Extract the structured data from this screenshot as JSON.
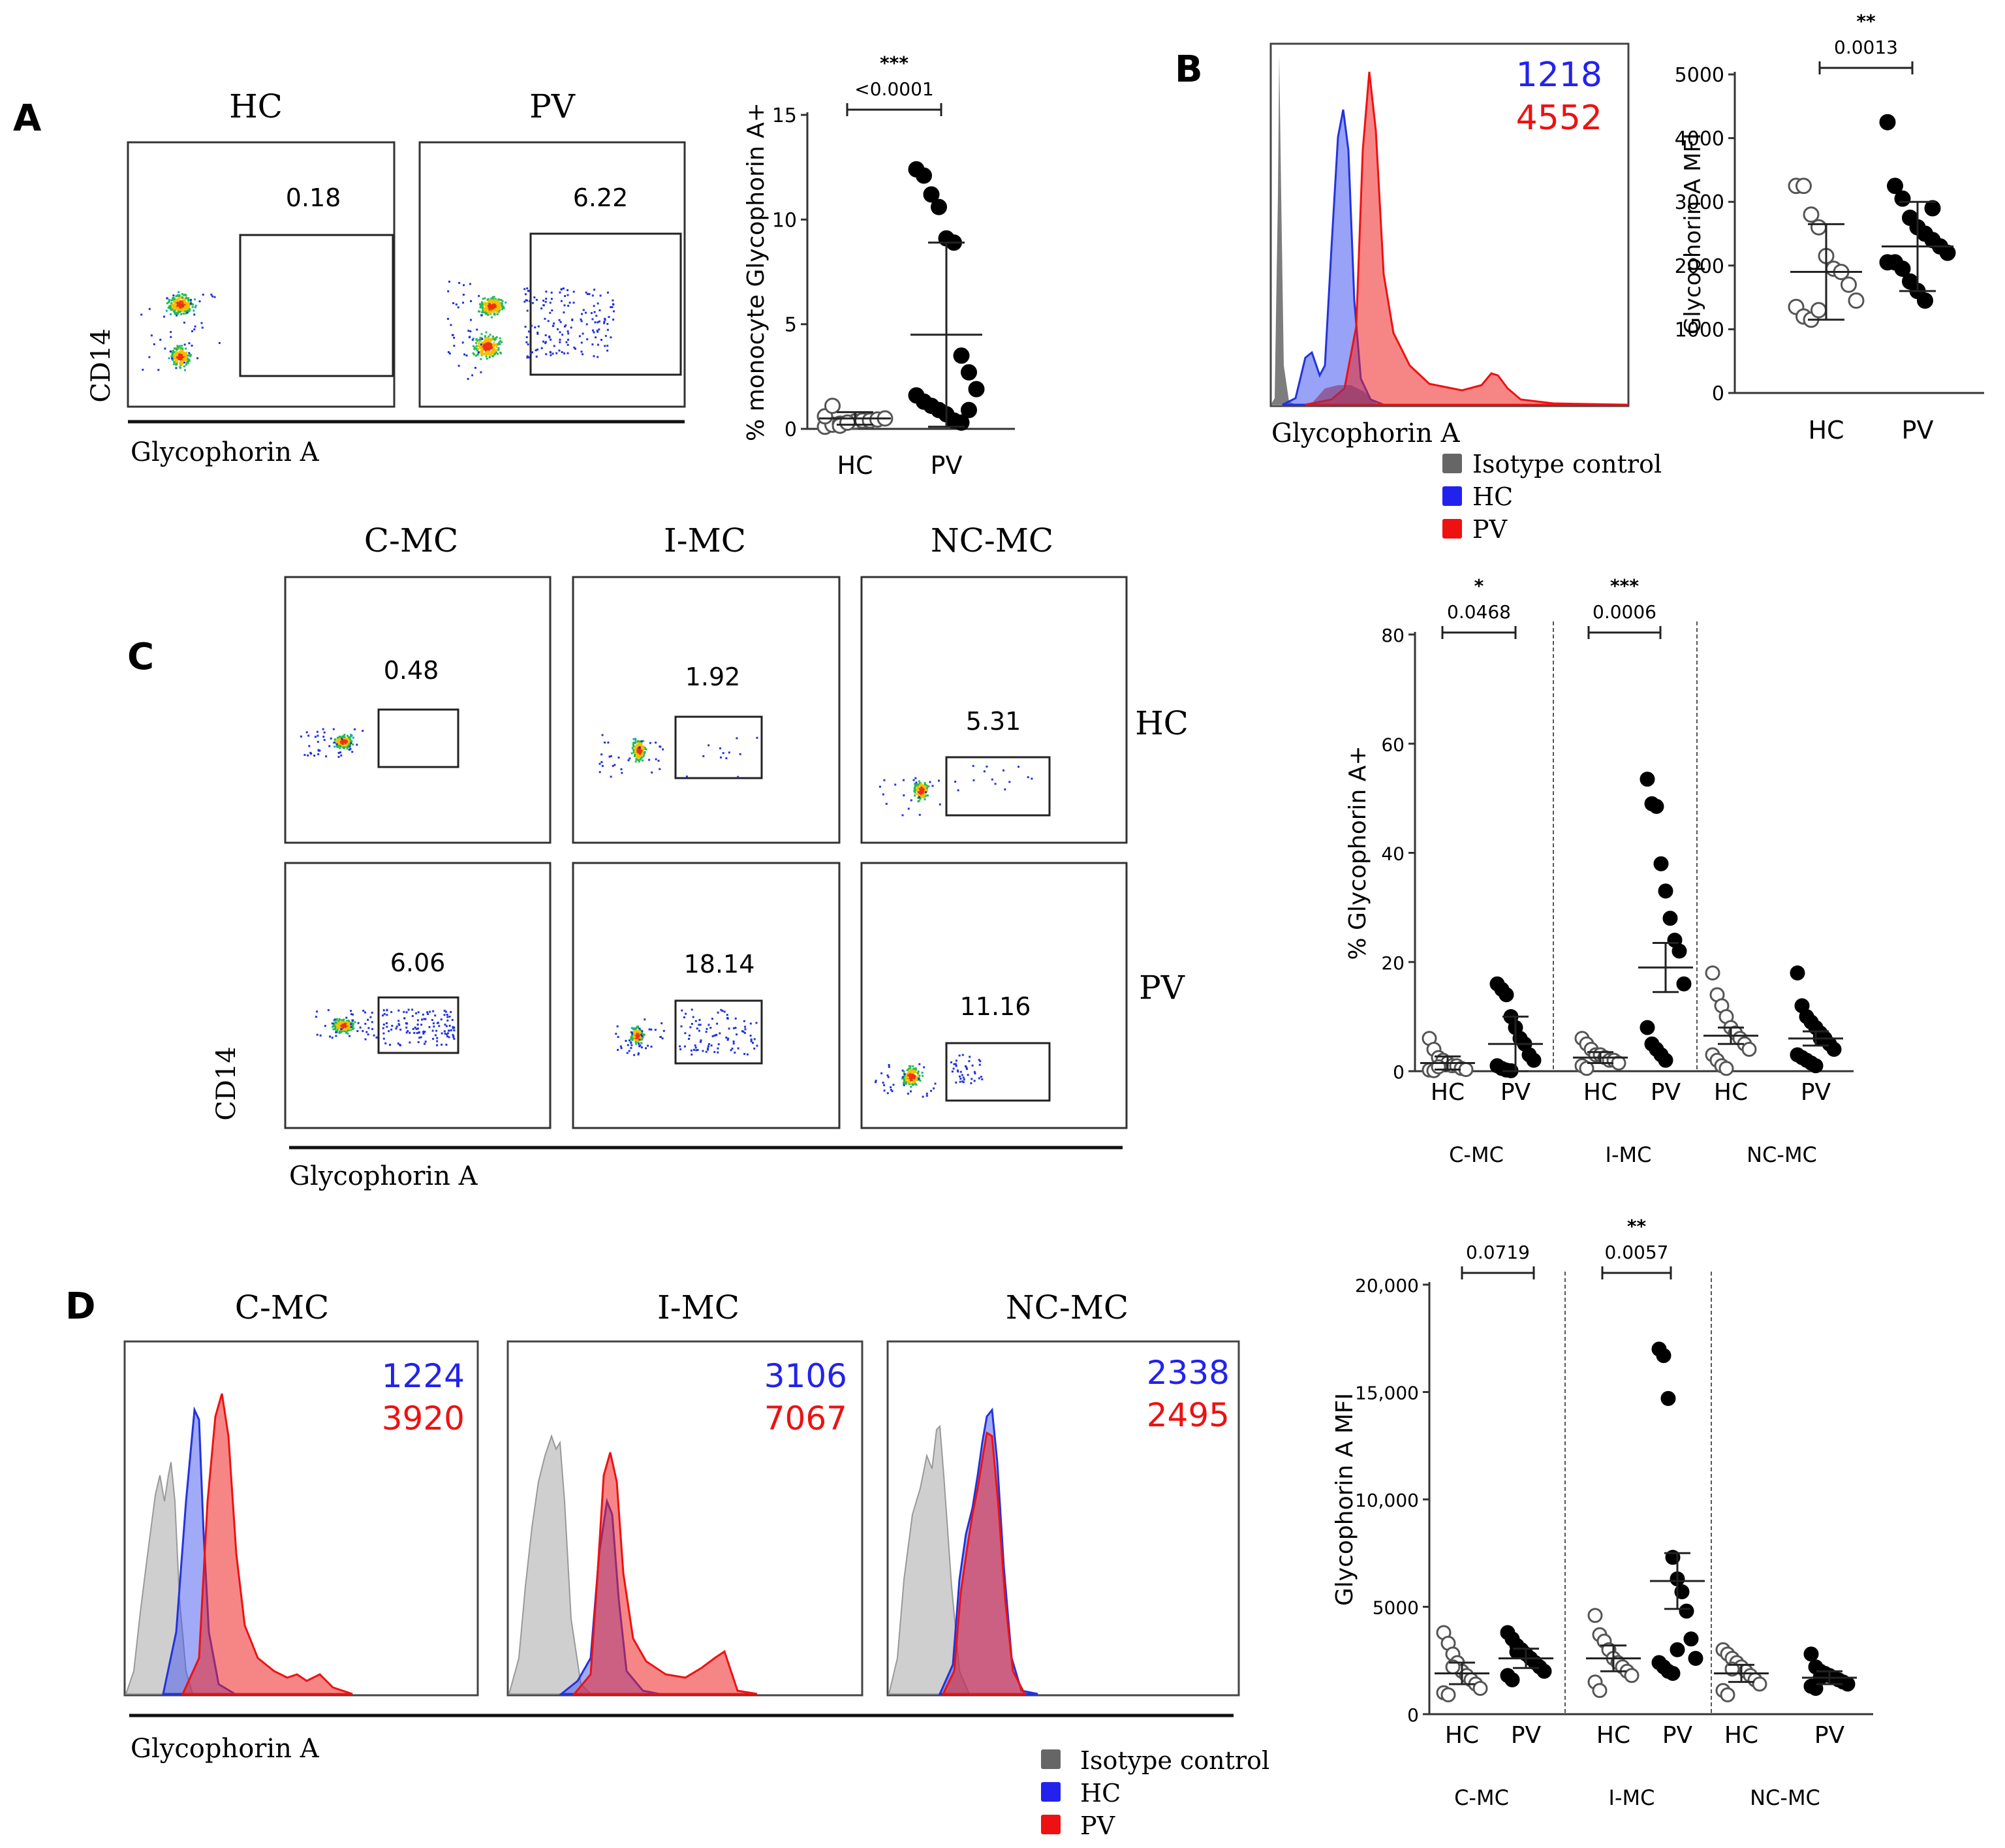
{
  "panel_labels": {
    "a": "A",
    "b": "B",
    "c": "C",
    "d": "D"
  },
  "colors": {
    "hc": "#2222ee",
    "pv": "#ee1111",
    "isotype": "#666666",
    "open": "#ffffff",
    "filled": "#000000"
  },
  "common": {
    "hc": "HC",
    "pv": "PV",
    "cd14": "CD14",
    "gpa": "Glycophorin A",
    "cmc": "C-MC",
    "imc": "I-MC",
    "ncmc": "NC-MC",
    "legend": {
      "isotype": "Isotype control",
      "hc": "HC",
      "pv": "PV"
    }
  },
  "panel_a": {
    "flow": [
      {
        "group": "HC",
        "gate": "0.18"
      },
      {
        "group": "PV",
        "gate": "6.22"
      }
    ]
  },
  "panel_b": {
    "mfi_hc": "1218",
    "mfi_pv": "4552"
  },
  "panel_c": {
    "subsets": [
      "C-MC",
      "I-MC",
      "NC-MC"
    ],
    "rows": [
      "HC",
      "PV"
    ],
    "gates": [
      [
        "0.48",
        "1.92",
        "5.31"
      ],
      [
        "6.06",
        "18.14",
        "11.16"
      ]
    ]
  },
  "panel_d": {
    "hists": [
      {
        "title": "C-MC",
        "hc": "1224",
        "pv": "3920"
      },
      {
        "title": "I-MC",
        "hc": "3106",
        "pv": "7067"
      },
      {
        "title": "NC-MC",
        "hc": "2338",
        "pv": "2495"
      }
    ]
  },
  "chart_data": [
    {
      "id": "A-scatter",
      "type": "scatter",
      "ylabel": "% monocyte Glycophorin A+",
      "xlabel": "",
      "categories": [
        "HC",
        "PV"
      ],
      "ylim": [
        0,
        15
      ],
      "yticks": [
        "0",
        "5",
        "10",
        "15"
      ],
      "series": [
        {
          "name": "HC",
          "marker": "open",
          "values": [
            0.1,
            0.2,
            0.25,
            0.3,
            0.35,
            0.4,
            0.4,
            0.45,
            0.5,
            0.6,
            1.1,
            0.15,
            0.3
          ],
          "mean": 0.5,
          "err": 0.3
        },
        {
          "name": "PV",
          "marker": "filled",
          "values": [
            12.4,
            12.1,
            11.2,
            10.6,
            9.1,
            8.9,
            3.5,
            2.7,
            1.9,
            1.6,
            1.3,
            1.1,
            0.9,
            0.7,
            0.4,
            0.3,
            0.9
          ],
          "mean": 4.5,
          "err": 4.4
        }
      ],
      "comparison": {
        "stars": "***",
        "p": "<0.0001"
      }
    },
    {
      "id": "B-scatter",
      "type": "scatter",
      "ylabel": "Glycophorin A MFI",
      "xlabel": "",
      "categories": [
        "HC",
        "PV"
      ],
      "ylim": [
        0,
        5000
      ],
      "yticks": [
        "0",
        "1000",
        "2000",
        "3000",
        "4000",
        "5000"
      ],
      "series": [
        {
          "name": "HC",
          "marker": "open",
          "values": [
            3250,
            3250,
            2800,
            2600,
            2150,
            1950,
            1900,
            1700,
            1450,
            1350,
            1200,
            1150,
            1300
          ],
          "mean": 1900,
          "err": 750
        },
        {
          "name": "PV",
          "marker": "filled",
          "values": [
            4250,
            3250,
            3050,
            2750,
            2600,
            2500,
            2400,
            2300,
            2200,
            2050,
            2050,
            1950,
            1750,
            1600,
            1450,
            2900
          ],
          "mean": 2300,
          "err": 700
        }
      ],
      "comparison": {
        "stars": "**",
        "p": "0.0013"
      }
    },
    {
      "id": "C-scatter",
      "type": "scatter",
      "ylabel": "% Glycophorin A+",
      "xlabel": "",
      "groups": [
        "C-MC",
        "I-MC",
        "NC-MC"
      ],
      "categories": [
        "HC",
        "PV"
      ],
      "ylim": [
        0,
        80
      ],
      "yticks": [
        "0",
        "20",
        "40",
        "60",
        "80"
      ],
      "series": [
        {
          "name": "C-MC HC",
          "marker": "open",
          "values": [
            6,
            4,
            2.5,
            2,
            1.5,
            1,
            1,
            0.5,
            0.3,
            0.2,
            0.1,
            0.8
          ],
          "mean": 1.5,
          "err": 1.2
        },
        {
          "name": "C-MC PV",
          "marker": "filled",
          "values": [
            16,
            15,
            14,
            10,
            8,
            6,
            5,
            3,
            2,
            1,
            0.5,
            0.2,
            0.1
          ],
          "mean": 5,
          "err": 5
        },
        {
          "name": "I-MC HC",
          "marker": "open",
          "values": [
            6,
            5,
            4,
            3,
            3,
            2.5,
            2,
            2,
            1.5,
            1,
            0.5
          ],
          "mean": 2.5,
          "err": 1
        },
        {
          "name": "I-MC PV",
          "marker": "filled",
          "values": [
            53.5,
            49,
            48.5,
            38,
            33,
            28,
            24,
            22,
            16,
            8,
            5,
            4,
            3,
            2
          ],
          "mean": 19,
          "err": 4.5
        },
        {
          "name": "NC-MC HC",
          "marker": "open",
          "values": [
            18,
            14,
            12,
            10,
            8,
            7,
            6,
            5,
            4,
            3,
            2,
            1,
            0.5
          ],
          "mean": 6.5,
          "err": 1.5
        },
        {
          "name": "NC-MC PV",
          "marker": "filled",
          "values": [
            18,
            12,
            10,
            9,
            8,
            7,
            6,
            5,
            4,
            3,
            2.5,
            2,
            1.5,
            1,
            6
          ],
          "mean": 6,
          "err": 1.3
        }
      ],
      "comparisons": [
        {
          "group": "C-MC",
          "stars": "*",
          "p": "0.0468"
        },
        {
          "group": "I-MC",
          "stars": "***",
          "p": "0.0006"
        }
      ]
    },
    {
      "id": "D-scatter",
      "type": "scatter",
      "ylabel": "Glycophorin A MFI",
      "xlabel": "",
      "groups": [
        "C-MC",
        "I-MC",
        "NC-MC"
      ],
      "categories": [
        "HC",
        "PV"
      ],
      "ylim": [
        0,
        20000
      ],
      "yticks": [
        "0",
        "5000",
        "10,000",
        "15,000",
        "20,000"
      ],
      "series": [
        {
          "name": "C-MC HC",
          "marker": "open",
          "values": [
            3800,
            3300,
            2800,
            2400,
            2000,
            1800,
            1600,
            1400,
            1200,
            1000,
            900,
            2200
          ],
          "mean": 1900,
          "err": 500
        },
        {
          "name": "C-MC PV",
          "marker": "filled",
          "values": [
            3800,
            3500,
            3200,
            3000,
            2800,
            2600,
            2400,
            2200,
            2000,
            1800,
            1600,
            2900
          ],
          "mean": 2600,
          "err": 450
        },
        {
          "name": "I-MC HC",
          "marker": "open",
          "values": [
            4600,
            3700,
            3400,
            3000,
            2600,
            2400,
            2200,
            2000,
            1800,
            1500,
            1100
          ],
          "mean": 2600,
          "err": 600
        },
        {
          "name": "I-MC PV",
          "marker": "filled",
          "values": [
            17000,
            16700,
            14700,
            7300,
            6300,
            5700,
            4800,
            3500,
            2600,
            2400,
            2200,
            2000,
            1900,
            3000
          ],
          "mean": 6200,
          "err": 1300
        },
        {
          "name": "NC-MC HC",
          "marker": "open",
          "values": [
            3000,
            2800,
            2600,
            2400,
            2200,
            2000,
            1800,
            1600,
            1400,
            1100,
            900,
            2100
          ],
          "mean": 1900,
          "err": 400
        },
        {
          "name": "NC-MC PV",
          "marker": "filled",
          "values": [
            2800,
            2200,
            2000,
            1900,
            1800,
            1700,
            1600,
            1500,
            1400,
            1300,
            1200,
            1700
          ],
          "mean": 1700,
          "err": 300
        }
      ],
      "comparisons": [
        {
          "group": "C-MC",
          "stars": "",
          "p": "0.0719"
        },
        {
          "group": "I-MC",
          "stars": "**",
          "p": "0.0057"
        }
      ]
    }
  ]
}
